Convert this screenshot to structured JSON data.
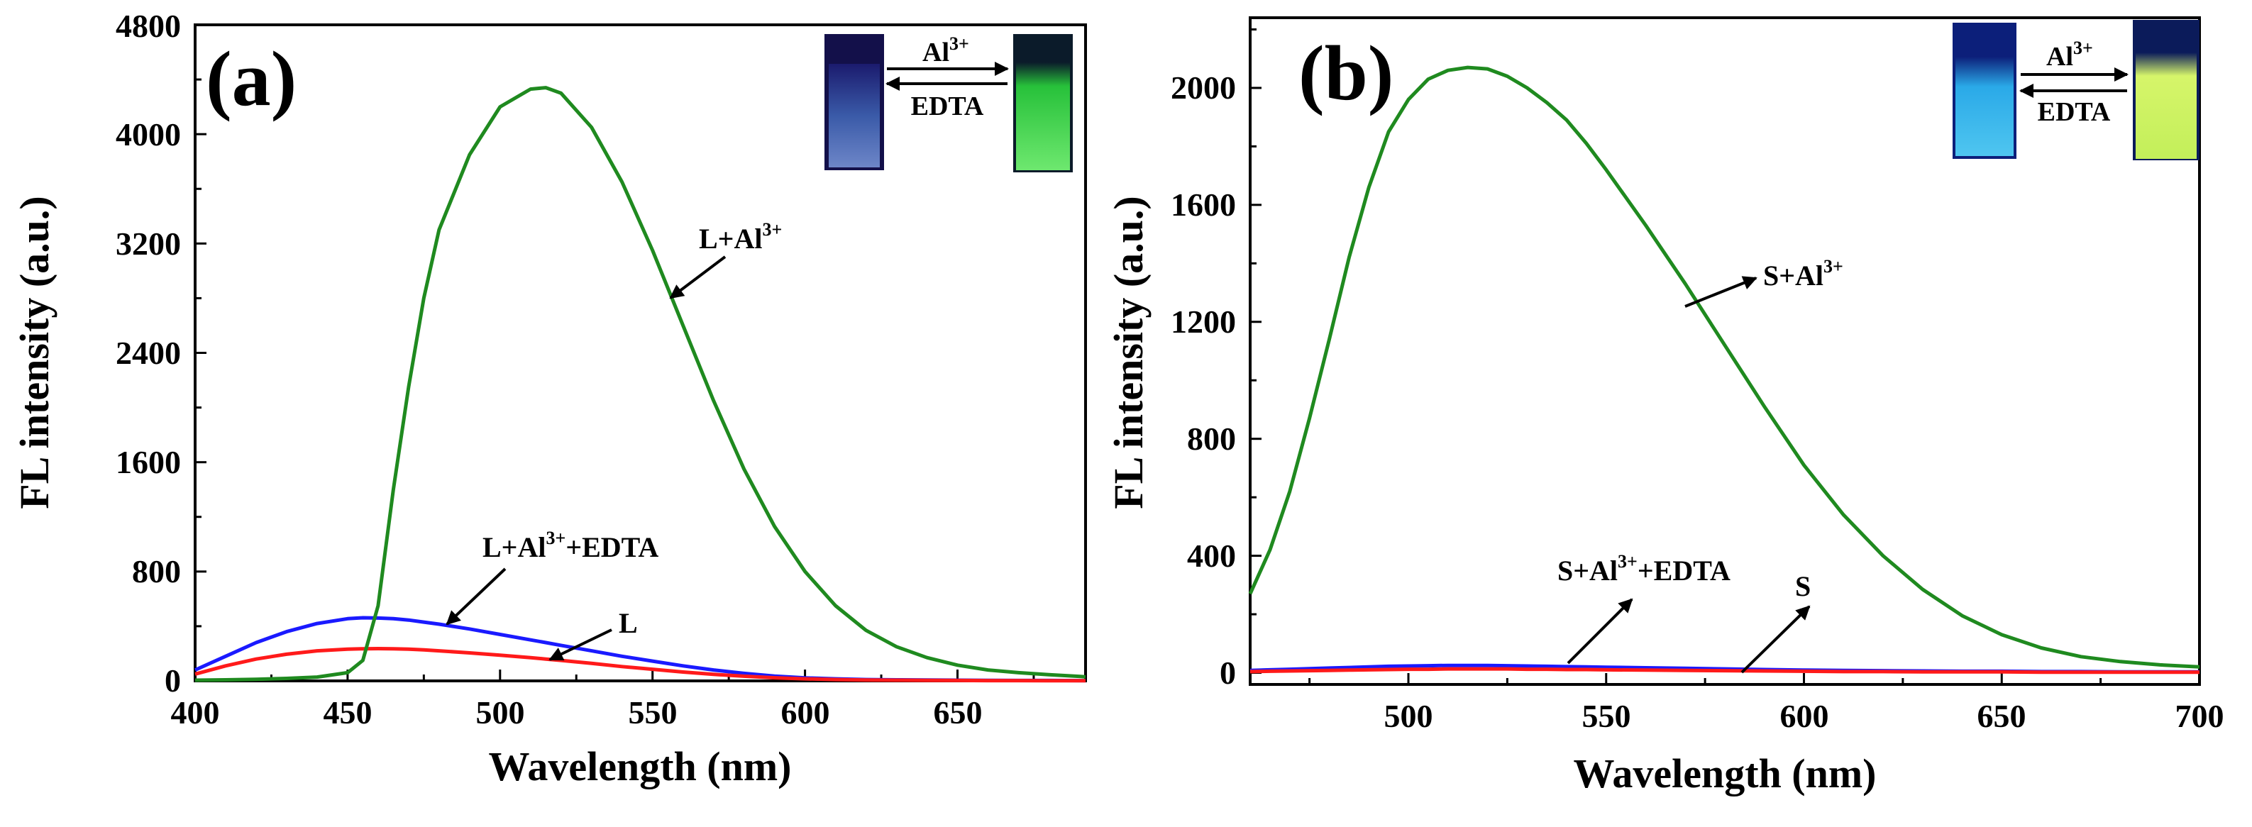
{
  "chart_data": [
    {
      "panel": "(a)",
      "type": "line",
      "xlabel": "Wavelength (nm)",
      "ylabel": "FL intensity (a.u.)",
      "xlim": [
        400,
        692
      ],
      "ylim": [
        0,
        4800
      ],
      "xticks": [
        400,
        450,
        500,
        550,
        600,
        650
      ],
      "yticks": [
        0,
        800,
        1600,
        2400,
        3200,
        4000,
        4800
      ],
      "x": [
        400,
        410,
        420,
        430,
        440,
        450,
        455,
        460,
        465,
        470,
        475,
        480,
        490,
        500,
        510,
        515,
        520,
        530,
        540,
        550,
        560,
        570,
        580,
        590,
        600,
        610,
        620,
        630,
        640,
        650,
        660,
        670,
        680,
        692
      ],
      "series": [
        {
          "name": "L+Al3+",
          "color": "#1f8a1f",
          "values": [
            5,
            8,
            12,
            18,
            28,
            60,
            150,
            550,
            1400,
            2150,
            2800,
            3300,
            3850,
            4200,
            4330,
            4340,
            4300,
            4050,
            3650,
            3150,
            2600,
            2050,
            1550,
            1130,
            800,
            550,
            370,
            250,
            170,
            115,
            80,
            60,
            45,
            30
          ]
        },
        {
          "name": "L+Al3++EDTA",
          "color": "#1a1aff",
          "values": [
            80,
            180,
            280,
            360,
            420,
            455,
            462,
            460,
            455,
            445,
            430,
            415,
            380,
            340,
            300,
            280,
            260,
            220,
            180,
            145,
            110,
            80,
            55,
            35,
            22,
            15,
            10,
            8,
            6,
            5,
            4,
            3,
            3,
            2
          ]
        },
        {
          "name": "L",
          "color": "#ff1a1a",
          "values": [
            50,
            110,
            160,
            195,
            220,
            232,
            235,
            236,
            235,
            232,
            227,
            220,
            205,
            188,
            170,
            160,
            150,
            128,
            105,
            85,
            65,
            48,
            34,
            23,
            15,
            10,
            7,
            5,
            4,
            3,
            2,
            2,
            1,
            1
          ]
        }
      ],
      "annotations": [
        {
          "text": "L+Al",
          "sup": "3+",
          "target": "L+Al3+"
        },
        {
          "text": "L+Al",
          "sup": "3+",
          "tail": "+EDTA",
          "target": "L+Al3++EDTA"
        },
        {
          "text": "L",
          "target": "L"
        }
      ],
      "inset": {
        "forward_label": "Al",
        "forward_sup": "3+",
        "reverse_label": "EDTA",
        "left_vial": "dark blue",
        "right_vial": "green"
      }
    },
    {
      "panel": "(b)",
      "type": "line",
      "xlabel": "Wavelength (nm)",
      "ylabel": "FL intensity (a.u.)",
      "xlim": [
        460,
        700
      ],
      "ylim": [
        -40,
        2240
      ],
      "xticks": [
        500,
        550,
        600,
        650,
        700
      ],
      "yticks": [
        0,
        400,
        800,
        1200,
        1600,
        2000
      ],
      "x": [
        460,
        465,
        470,
        475,
        480,
        485,
        490,
        495,
        500,
        505,
        510,
        515,
        520,
        525,
        530,
        535,
        540,
        545,
        550,
        560,
        570,
        580,
        590,
        600,
        610,
        620,
        630,
        640,
        650,
        660,
        670,
        680,
        690,
        700
      ],
      "series": [
        {
          "name": "S+Al3+",
          "color": "#1f8a1f",
          "values": [
            270,
            420,
            620,
            870,
            1140,
            1420,
            1660,
            1850,
            1960,
            2030,
            2060,
            2070,
            2065,
            2040,
            2000,
            1950,
            1890,
            1810,
            1720,
            1530,
            1330,
            1120,
            910,
            710,
            540,
            400,
            285,
            195,
            130,
            85,
            55,
            38,
            27,
            20
          ]
        },
        {
          "name": "S+Al3++EDTA",
          "color": "#1a1aff",
          "values": [
            8,
            10,
            12,
            14,
            16,
            18,
            20,
            22,
            23,
            24,
            25,
            25,
            25,
            24,
            23,
            22,
            21,
            20,
            19,
            17,
            15,
            13,
            11,
            9,
            8,
            7,
            6,
            5,
            5,
            4,
            4,
            3,
            3,
            3
          ]
        },
        {
          "name": "S",
          "color": "#ff1a1a",
          "values": [
            4,
            5,
            6,
            7,
            8,
            9,
            10,
            11,
            12,
            12,
            13,
            13,
            13,
            13,
            12,
            12,
            11,
            11,
            10,
            9,
            8,
            7,
            6,
            5,
            4,
            4,
            3,
            3,
            3,
            2,
            2,
            2,
            2,
            2
          ]
        }
      ],
      "annotations": [
        {
          "text": "S+Al",
          "sup": "3+",
          "target": "S+Al3+"
        },
        {
          "text": "S+Al",
          "sup": "3+",
          "tail": "+EDTA",
          "target": "S+Al3++EDTA"
        },
        {
          "text": "S",
          "target": "S"
        }
      ],
      "inset": {
        "forward_label": "Al",
        "forward_sup": "3+",
        "reverse_label": "EDTA",
        "left_vial": "cyan blue",
        "right_vial": "yellow-green"
      }
    }
  ]
}
